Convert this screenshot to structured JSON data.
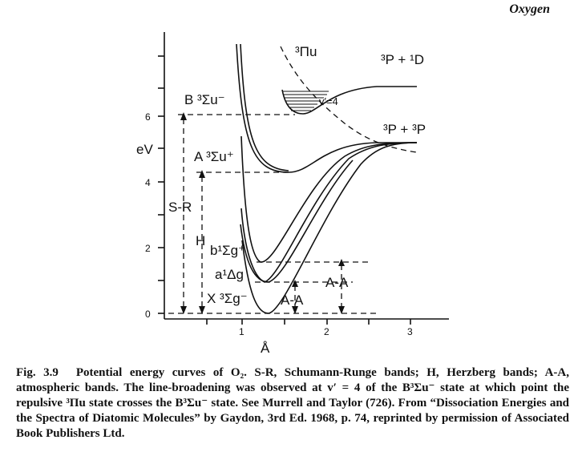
{
  "header": {
    "title": "Oxygen"
  },
  "diagram": {
    "yaxis": {
      "unit": "eV",
      "ticks": [
        "0",
        "2",
        "4",
        "6"
      ]
    },
    "xaxis": {
      "unit": "Å",
      "ticks": [
        "1",
        "2",
        "3"
      ]
    },
    "states": {
      "pi_u": "³Πu",
      "p_d": "³P + ¹D",
      "b_sigma_u": "B ³Σu⁻",
      "v4": "v′=4",
      "p_p": "³P + ³P",
      "a_sigma_u": "A ³Σu⁺",
      "b_sigma_g": "b¹Σg⁺",
      "a_delta_g": "a¹Δg",
      "x_sigma_g": "X ³Σg⁻"
    },
    "bands": {
      "sr": "S-R",
      "h": "H",
      "aa1": "A-A",
      "aa2": "A-A"
    }
  },
  "caption": {
    "label": "Fig. 3.9",
    "text": "Potential energy curves of O₂. S-R, Schumann-Runge bands; H, Herzberg bands; A-A, atmospheric bands. The line-broadening was observed at v′ = 4 of the B³Σu⁻ state at which point the repulsive ³Πu state crosses the B³Σu⁻ state. See Murrell and Taylor (726). From “Dissociation Energies and the Spectra of Diatomic Molecules” by Gaydon, 3rd Ed. 1968, p. 74, reprinted by permission of Associated Book Publishers Ltd."
  }
}
